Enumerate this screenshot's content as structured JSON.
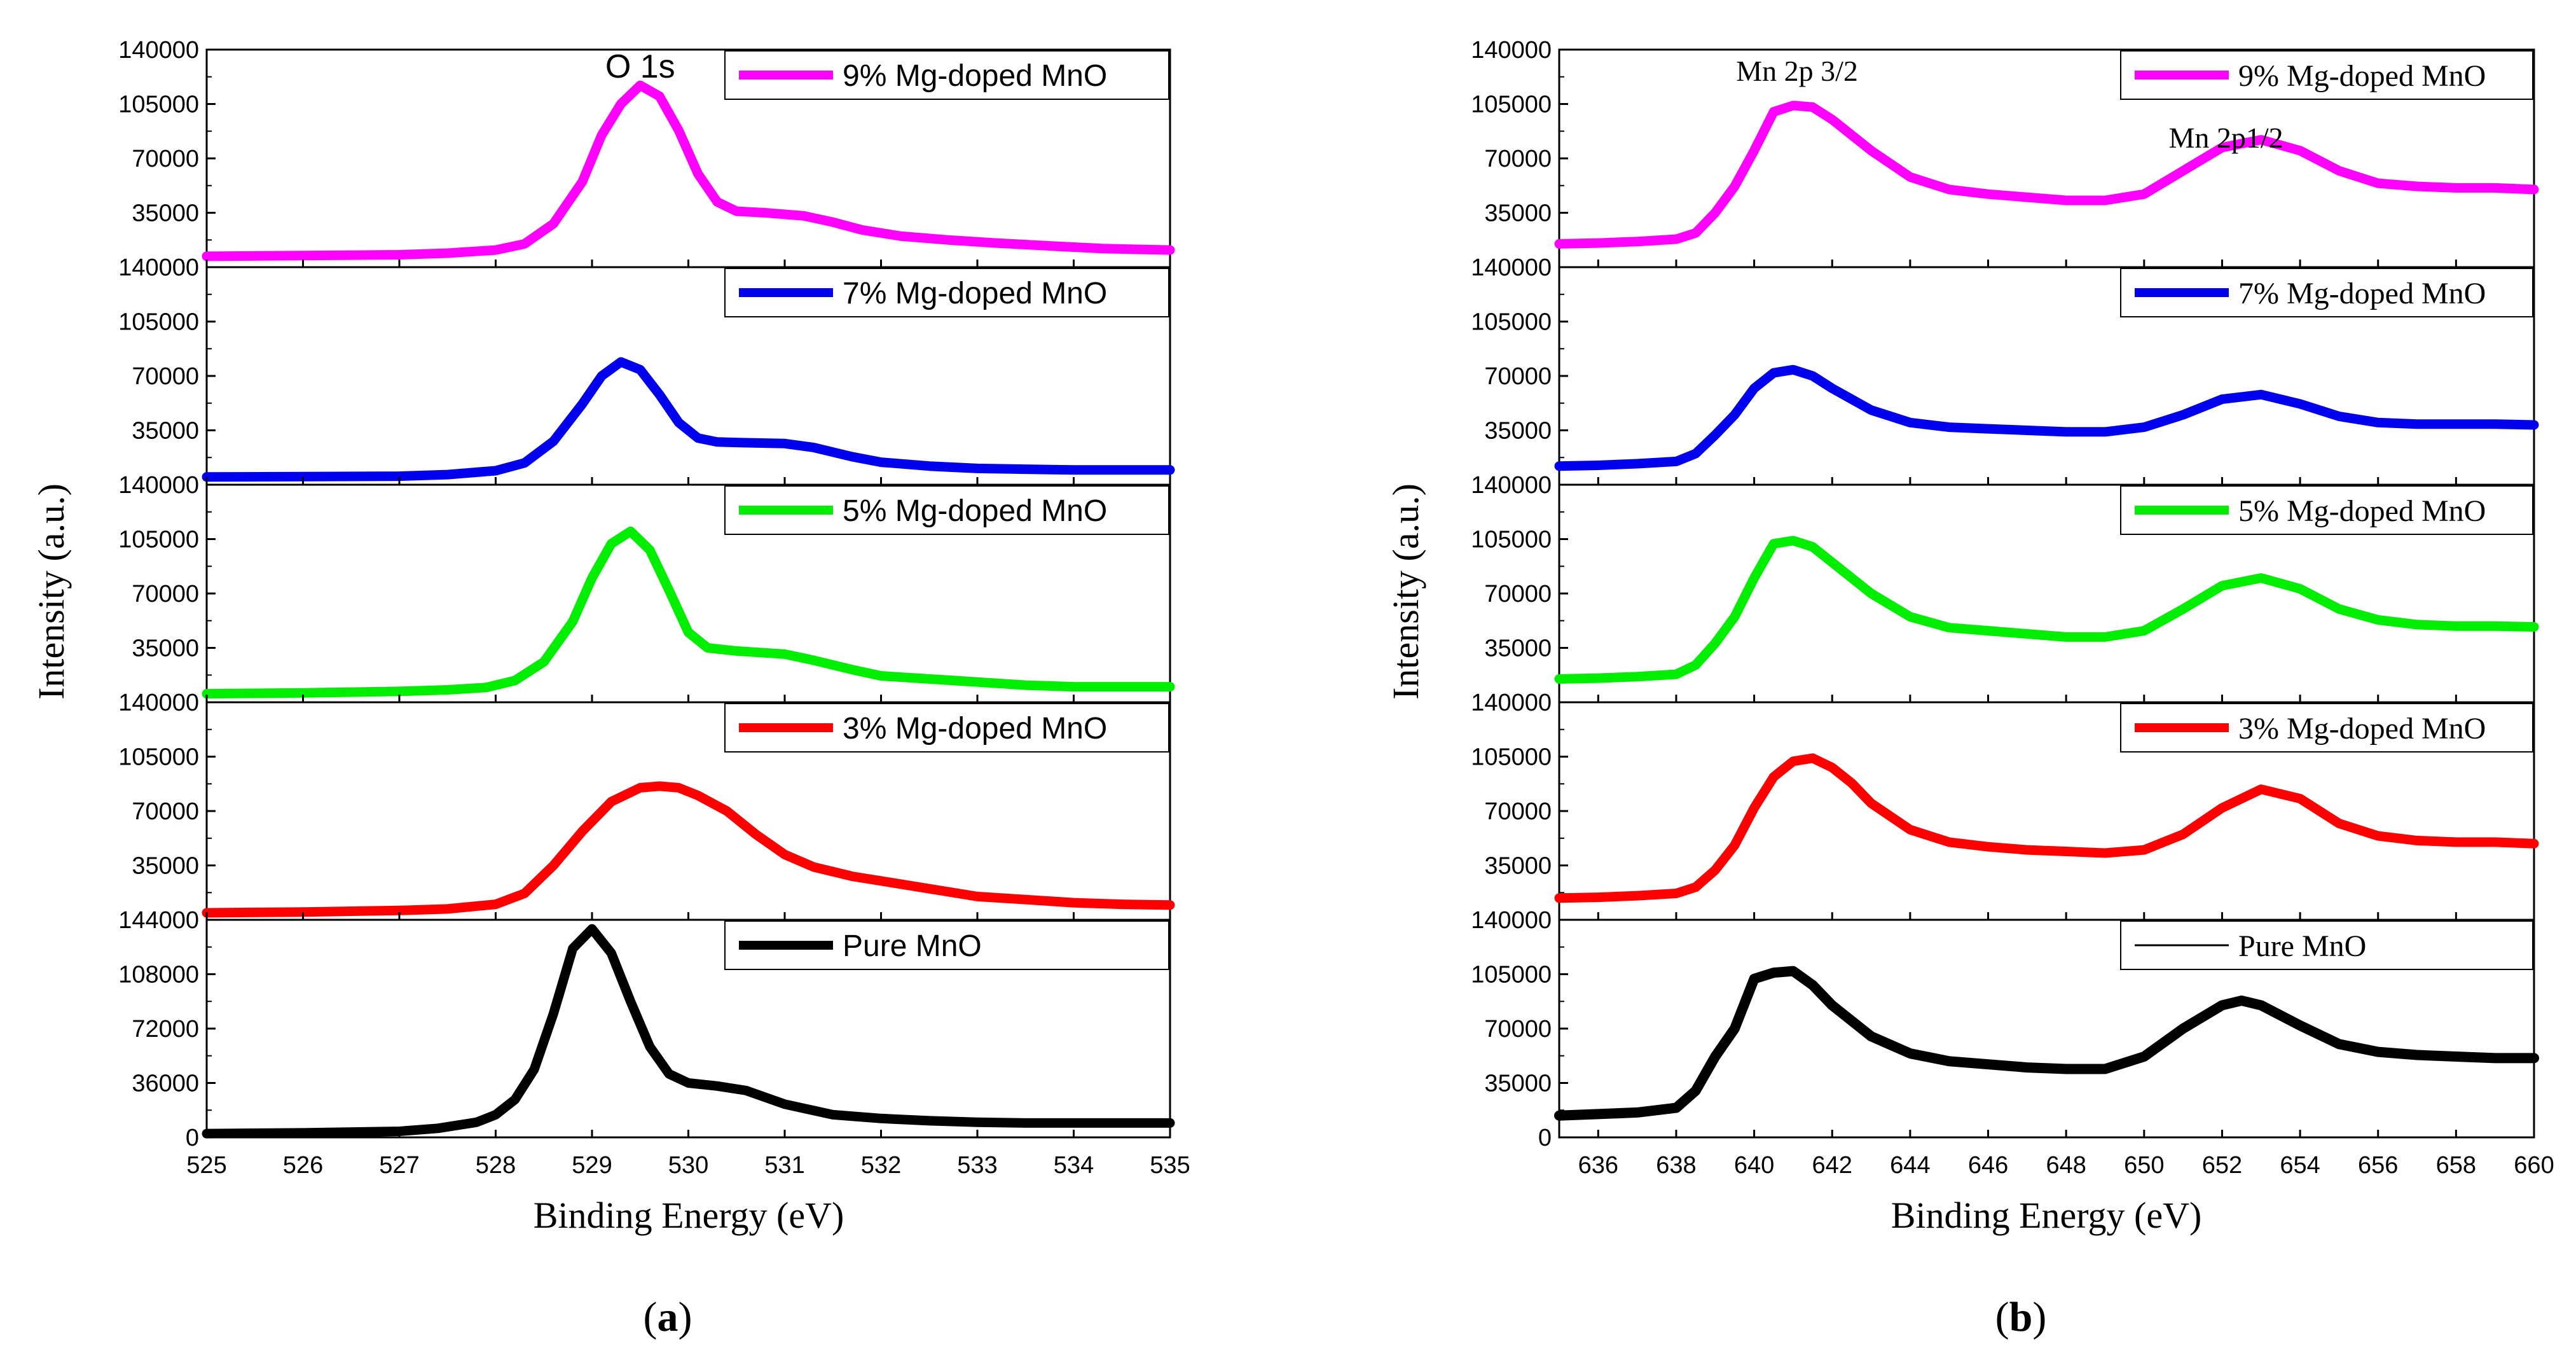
{
  "figure": {
    "ylabel": "Intensity (a.u.)",
    "xlabel": "Binding Energy (eV)",
    "series_colors": {
      "pure": "#000000",
      "mg3": "#ff0000",
      "mg5": "#00ee00",
      "mg7": "#0000ee",
      "mg9": "#ff00ff"
    }
  },
  "chart_data": [
    {
      "type": "line",
      "panel_label_pre": "(",
      "panel_label_letter": "a",
      "panel_label_post": ")",
      "xlabel": "Binding Energy (eV)",
      "ylabel": "Intensity (a.u.)",
      "xlim": [
        525,
        535
      ],
      "x_ticks": [
        "525",
        "526",
        "527",
        "528",
        "529",
        "530",
        "531",
        "532",
        "533",
        "534",
        "535"
      ],
      "annotations": [
        {
          "text": "O 1s",
          "x": 529.5,
          "y": 122000,
          "subplot": 0
        }
      ],
      "subplots": [
        {
          "legend": "9% Mg-doped MnO",
          "color": "#ff00ff",
          "ylim": [
            0,
            140000
          ],
          "y_ticks": [
            "140000",
            "105000",
            "70000",
            "35000"
          ],
          "x": [
            525,
            526,
            527,
            527.5,
            528,
            528.3,
            528.6,
            528.9,
            529.1,
            529.3,
            529.5,
            529.7,
            529.9,
            530.1,
            530.3,
            530.5,
            530.8,
            531.2,
            531.5,
            531.8,
            532.2,
            532.7,
            533.2,
            533.8,
            534.3,
            535
          ],
          "values": [
            7000,
            7500,
            8000,
            9000,
            11000,
            15000,
            28000,
            55000,
            85000,
            105000,
            117000,
            110000,
            88000,
            60000,
            42000,
            36000,
            35000,
            33000,
            29000,
            24000,
            20000,
            17500,
            15500,
            13500,
            12000,
            11000
          ]
        },
        {
          "legend": "7% Mg-doped MnO",
          "color": "#0000ee",
          "ylim": [
            0,
            140000
          ],
          "y_ticks": [
            "140000",
            "105000",
            "70000",
            "35000"
          ],
          "x": [
            525,
            526,
            527,
            527.5,
            528,
            528.3,
            528.6,
            528.9,
            529.1,
            529.3,
            529.5,
            529.7,
            529.9,
            530.1,
            530.3,
            530.6,
            531,
            531.3,
            531.7,
            532,
            532.5,
            533,
            533.5,
            534,
            534.5,
            535
          ],
          "values": [
            5000,
            5200,
            5500,
            6500,
            9000,
            14000,
            28000,
            52000,
            70000,
            79000,
            74000,
            58000,
            40000,
            30000,
            27500,
            27000,
            26500,
            24000,
            18000,
            14500,
            12000,
            10500,
            10000,
            9500,
            9500,
            9500
          ]
        },
        {
          "legend": "5% Mg-doped MnO",
          "color": "#00ee00",
          "ylim": [
            0,
            140000
          ],
          "y_ticks": [
            "140000",
            "105000",
            "70000",
            "35000"
          ],
          "x": [
            525,
            526,
            527,
            527.5,
            527.9,
            528.2,
            528.5,
            528.8,
            529,
            529.2,
            529.4,
            529.6,
            529.8,
            530,
            530.2,
            530.5,
            531,
            531.3,
            531.7,
            532,
            532.5,
            533,
            533.5,
            534,
            534.5,
            535
          ],
          "values": [
            5500,
            6000,
            7000,
            8000,
            9500,
            14000,
            26000,
            52000,
            80000,
            102000,
            110000,
            98000,
            72000,
            45000,
            35000,
            33000,
            31000,
            27000,
            21000,
            17000,
            15000,
            13000,
            11000,
            10000,
            10000,
            10000
          ]
        },
        {
          "legend": "3% Mg-doped MnO",
          "color": "#ff0000",
          "ylim": [
            0,
            140000
          ],
          "y_ticks": [
            "140000",
            "105000",
            "70000",
            "35000"
          ],
          "x": [
            525,
            526,
            527,
            527.5,
            528,
            528.3,
            528.6,
            528.9,
            529.2,
            529.5,
            529.7,
            529.9,
            530.1,
            530.4,
            530.7,
            531,
            531.3,
            531.7,
            532,
            532.5,
            533,
            533.5,
            534,
            534.5,
            535
          ],
          "values": [
            4500,
            5000,
            6000,
            7000,
            10000,
            17000,
            35000,
            57000,
            76000,
            85000,
            86000,
            85000,
            80000,
            70000,
            55000,
            42000,
            34000,
            28000,
            25000,
            20000,
            15000,
            13000,
            11000,
            10000,
            9500
          ]
        },
        {
          "legend": "Pure MnO",
          "color": "#000000",
          "ylim": [
            0,
            144000
          ],
          "y_ticks": [
            "144000",
            "108000",
            "72000",
            "36000",
            "0"
          ],
          "x": [
            525,
            526,
            527,
            527.4,
            527.8,
            528,
            528.2,
            528.4,
            528.6,
            528.8,
            529,
            529.2,
            529.4,
            529.6,
            529.8,
            530,
            530.3,
            530.6,
            531,
            531.5,
            532,
            532.5,
            533,
            533.5,
            534,
            535
          ],
          "values": [
            2500,
            3000,
            4000,
            6000,
            10000,
            15000,
            25000,
            45000,
            82000,
            125000,
            138000,
            122000,
            90000,
            60000,
            42000,
            36000,
            34000,
            31000,
            22000,
            15000,
            12500,
            11000,
            10000,
            9500,
            9500,
            9500
          ]
        }
      ]
    },
    {
      "type": "line",
      "panel_label_pre": "(",
      "panel_label_letter": "b",
      "panel_label_post": ")",
      "xlabel": "Binding Energy (eV)",
      "ylabel": "Intensity (a.u.)",
      "xlim": [
        635,
        660
      ],
      "x_ticks": [
        "636",
        "638",
        "640",
        "642",
        "644",
        "646",
        "648",
        "650",
        "652",
        "654",
        "656",
        "658",
        "660"
      ],
      "x_tick_values": [
        636,
        638,
        640,
        642,
        644,
        646,
        648,
        650,
        652,
        654,
        656,
        658,
        660
      ],
      "annotations": [
        {
          "text": "Mn 2p 3/2",
          "x": 641.1,
          "y": 120000,
          "subplot": 0
        },
        {
          "text": "Mn 2p1/2",
          "x": 652.1,
          "y": 77000,
          "subplot": 0
        }
      ],
      "subplots": [
        {
          "legend": "9% Mg-doped MnO",
          "color": "#ff00ff",
          "ylim": [
            0,
            140000
          ],
          "y_ticks": [
            "140000",
            "105000",
            "70000",
            "35000"
          ],
          "x": [
            635,
            636,
            637,
            638,
            638.5,
            639,
            639.5,
            640,
            640.5,
            641,
            641.5,
            642,
            643,
            644,
            645,
            646,
            647,
            648,
            649,
            650,
            651,
            652,
            653,
            654,
            655,
            656,
            657,
            658,
            659,
            660
          ],
          "values": [
            15000,
            15500,
            16500,
            18000,
            22000,
            35000,
            52000,
            75000,
            100000,
            104000,
            103000,
            95000,
            75000,
            58000,
            50000,
            47000,
            45000,
            43000,
            43000,
            47000,
            62000,
            77000,
            82000,
            75000,
            62000,
            54000,
            52000,
            51000,
            51000,
            50000
          ]
        },
        {
          "legend": "7% Mg-doped MnO",
          "color": "#0000ee",
          "ylim": [
            0,
            140000
          ],
          "y_ticks": [
            "140000",
            "105000",
            "70000",
            "35000"
          ],
          "x": [
            635,
            636,
            637,
            638,
            638.5,
            639,
            639.5,
            640,
            640.5,
            641,
            641.5,
            642,
            643,
            644,
            645,
            646,
            647,
            648,
            649,
            650,
            651,
            652,
            653,
            654,
            655,
            656,
            657,
            658,
            659,
            660
          ],
          "values": [
            12000,
            12500,
            13500,
            15000,
            20000,
            32000,
            45000,
            62000,
            72000,
            74000,
            70000,
            62000,
            48000,
            40000,
            37000,
            36000,
            35000,
            34000,
            34000,
            37000,
            45000,
            55000,
            58000,
            52000,
            44000,
            40000,
            39000,
            39000,
            39000,
            38500
          ]
        },
        {
          "legend": "5% Mg-doped MnO",
          "color": "#00ee00",
          "ylim": [
            0,
            140000
          ],
          "y_ticks": [
            "140000",
            "105000",
            "70000",
            "35000"
          ],
          "x": [
            635,
            636,
            637,
            638,
            638.5,
            639,
            639.5,
            640,
            640.5,
            641,
            641.5,
            642,
            643,
            644,
            645,
            646,
            647,
            648,
            649,
            650,
            651,
            652,
            653,
            654,
            655,
            656,
            657,
            658,
            659,
            660
          ],
          "values": [
            15000,
            15500,
            16500,
            18000,
            24000,
            38000,
            55000,
            80000,
            102000,
            104000,
            100000,
            90000,
            70000,
            55000,
            48000,
            46000,
            44000,
            42000,
            42000,
            46000,
            60000,
            75000,
            80000,
            73000,
            60000,
            53000,
            50000,
            49000,
            49000,
            48500
          ]
        },
        {
          "legend": "3% Mg-doped MnO",
          "color": "#ff0000",
          "ylim": [
            0,
            140000
          ],
          "y_ticks": [
            "140000",
            "105000",
            "70000",
            "35000"
          ],
          "x": [
            635,
            636,
            637,
            638,
            638.5,
            639,
            639.5,
            640,
            640.5,
            641,
            641.5,
            642,
            642.5,
            643,
            644,
            645,
            646,
            647,
            648,
            649,
            650,
            651,
            652,
            653,
            654,
            655,
            656,
            657,
            658,
            659,
            660
          ],
          "values": [
            14000,
            14500,
            15500,
            17000,
            21000,
            32000,
            48000,
            72000,
            92000,
            102000,
            104000,
            98000,
            88000,
            75000,
            58000,
            50000,
            47000,
            45000,
            44000,
            43000,
            45000,
            55000,
            72000,
            84000,
            78000,
            62000,
            54000,
            51000,
            50000,
            50000,
            49000
          ]
        },
        {
          "legend": "Pure MnO",
          "color": "#000000",
          "ylim": [
            0,
            140000
          ],
          "y_ticks": [
            "140000",
            "105000",
            "70000",
            "35000",
            "0"
          ],
          "x": [
            635,
            636,
            637,
            638,
            638.5,
            639,
            639.5,
            640,
            640.5,
            641,
            641.5,
            642,
            643,
            644,
            645,
            646,
            647,
            648,
            649,
            650,
            651,
            652,
            652.5,
            653,
            654,
            655,
            656,
            657,
            658,
            659,
            660
          ],
          "values": [
            14000,
            15000,
            16000,
            19000,
            30000,
            52000,
            70000,
            102000,
            106000,
            107000,
            98000,
            85000,
            65000,
            54000,
            49000,
            47000,
            45000,
            44000,
            44000,
            52000,
            70000,
            85000,
            88000,
            85000,
            72000,
            60000,
            55000,
            53000,
            52000,
            51000,
            51000
          ]
        }
      ]
    }
  ]
}
